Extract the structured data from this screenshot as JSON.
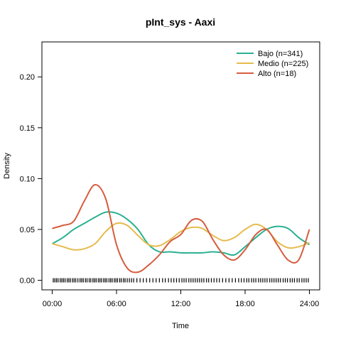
{
  "chart_data": {
    "type": "line",
    "title": "pInt_sys - Aaxi",
    "xlabel": "Time",
    "ylabel": "Density",
    "x_ticks": [
      {
        "value": 0,
        "label": "00:00"
      },
      {
        "value": 6,
        "label": "06:00"
      },
      {
        "value": 12,
        "label": "12:00"
      },
      {
        "value": 18,
        "label": "18:00"
      },
      {
        "value": 24,
        "label": "24:00"
      }
    ],
    "y_ticks": [
      {
        "value": 0.0,
        "label": "0.00"
      },
      {
        "value": 0.05,
        "label": "0.05"
      },
      {
        "value": 0.1,
        "label": "0.10"
      },
      {
        "value": 0.15,
        "label": "0.15"
      },
      {
        "value": 0.2,
        "label": "0.20"
      }
    ],
    "xlim": [
      -0.96,
      24.96
    ],
    "ylim": [
      -0.0094,
      0.2344
    ],
    "legend_position": "top-right",
    "rug": true,
    "series": [
      {
        "name": "Bajo (n=341)",
        "color": "#2ab191",
        "x": [
          0,
          1,
          2,
          3,
          4,
          5,
          6,
          7,
          8,
          9,
          10,
          11,
          12,
          13,
          14,
          15,
          16,
          17,
          18,
          19,
          20,
          21,
          22,
          23,
          24
        ],
        "y": [
          0.036,
          0.042,
          0.05,
          0.056,
          0.062,
          0.067,
          0.066,
          0.06,
          0.05,
          0.035,
          0.028,
          0.028,
          0.027,
          0.027,
          0.027,
          0.028,
          0.027,
          0.025,
          0.033,
          0.042,
          0.05,
          0.053,
          0.051,
          0.042,
          0.035
        ]
      },
      {
        "name": "Medio (n=225)",
        "color": "#e6bb4d",
        "x": [
          0,
          1,
          2,
          3,
          4,
          5,
          6,
          7,
          8,
          9,
          10,
          11,
          12,
          13,
          14,
          15,
          16,
          17,
          18,
          19,
          20,
          21,
          22,
          23,
          24
        ],
        "y": [
          0.036,
          0.033,
          0.03,
          0.031,
          0.036,
          0.048,
          0.056,
          0.054,
          0.044,
          0.035,
          0.034,
          0.04,
          0.048,
          0.052,
          0.051,
          0.044,
          0.039,
          0.042,
          0.05,
          0.055,
          0.05,
          0.038,
          0.032,
          0.033,
          0.037
        ]
      },
      {
        "name": "Alto (n=18)",
        "color": "#d65c3e",
        "x": [
          0,
          1,
          2,
          3,
          4,
          5,
          6,
          7,
          8,
          9,
          10,
          11,
          12,
          13,
          14,
          15,
          16,
          17,
          18,
          19,
          20,
          21,
          22,
          23,
          24
        ],
        "y": [
          0.051,
          0.054,
          0.058,
          0.078,
          0.094,
          0.08,
          0.035,
          0.012,
          0.008,
          0.015,
          0.025,
          0.038,
          0.045,
          0.059,
          0.058,
          0.04,
          0.025,
          0.02,
          0.03,
          0.045,
          0.05,
          0.035,
          0.02,
          0.02,
          0.05
        ]
      }
    ],
    "rug_x": [
      0.1,
      0.25,
      0.4,
      0.55,
      0.75,
      0.9,
      1.05,
      1.2,
      1.4,
      1.55,
      1.7,
      1.9,
      2.05,
      2.2,
      2.4,
      2.6,
      2.75,
      2.9,
      3.1,
      3.25,
      3.45,
      3.6,
      3.8,
      3.95,
      4.1,
      4.3,
      4.45,
      4.6,
      4.8,
      4.95,
      5.1,
      5.3,
      5.45,
      5.6,
      5.8,
      5.95,
      6.1,
      6.3,
      6.45,
      6.65,
      6.8,
      7.0,
      7.2,
      7.4,
      7.6,
      7.9,
      8.2,
      8.5,
      8.8,
      9.1,
      9.4,
      9.7,
      10.0,
      10.3,
      10.55,
      10.85,
      11.1,
      11.35,
      11.6,
      11.85,
      12.1,
      12.3,
      12.5,
      12.75,
      12.95,
      13.15,
      13.35,
      13.55,
      13.75,
      13.95,
      14.15,
      14.4,
      14.6,
      14.85,
      15.1,
      15.35,
      15.6,
      15.9,
      16.2,
      16.5,
      16.8,
      17.1,
      17.4,
      17.65,
      17.9,
      18.15,
      18.35,
      18.6,
      18.8,
      19.0,
      19.25,
      19.45,
      19.65,
      19.85,
      20.05,
      20.3,
      20.5,
      20.7,
      20.9,
      21.1,
      21.3,
      21.55,
      21.75,
      21.95,
      22.2,
      22.4,
      22.6,
      22.85,
      23.05,
      23.3,
      23.5,
      23.7,
      23.9
    ]
  }
}
